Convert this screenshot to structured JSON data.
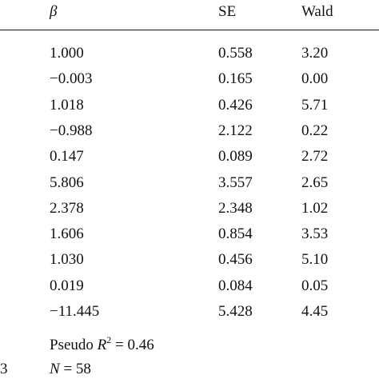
{
  "header": {
    "beta_label": "β",
    "se_label": "SE",
    "wald_label": "Wald"
  },
  "rows": [
    {
      "beta": "1.000",
      "se": "0.558",
      "wald": "3.20"
    },
    {
      "beta": "−0.003",
      "se": "0.165",
      "wald": "0.00"
    },
    {
      "beta": "1.018",
      "se": "0.426",
      "wald": "5.71"
    },
    {
      "beta": "−0.988",
      "se": "2.122",
      "wald": "0.22"
    },
    {
      "beta": "0.147",
      "se": "0.089",
      "wald": "2.72"
    },
    {
      "beta": "5.806",
      "se": "3.557",
      "wald": "2.65"
    },
    {
      "beta": "2.378",
      "se": "2.348",
      "wald": "1.02"
    },
    {
      "beta": "1.606",
      "se": "0.854",
      "wald": "3.53"
    },
    {
      "beta": "1.030",
      "se": "0.456",
      "wald": "5.10"
    },
    {
      "beta": "0.019",
      "se": "0.084",
      "wald": "0.05"
    },
    {
      "beta": "−11.445",
      "se": "5.428",
      "wald": "4.45"
    }
  ],
  "footer": {
    "pseudo_prefix": "Pseudo ",
    "pseudo_r": "R",
    "pseudo_sup": "2",
    "pseudo_value": " = 0.46",
    "cutoff_char": "3",
    "n_letter": "N",
    "n_value": " = 58"
  }
}
